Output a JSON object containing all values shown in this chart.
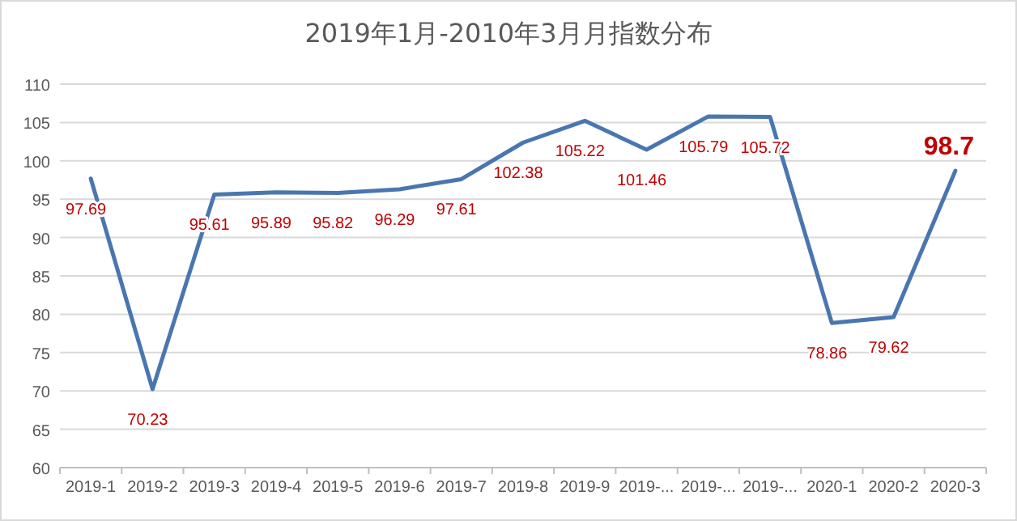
{
  "chart_data": {
    "type": "line",
    "title": "2019年1月-2010年3月月指数分布",
    "categories": [
      "2019-1",
      "2019-2",
      "2019-3",
      "2019-4",
      "2019-5",
      "2019-6",
      "2019-7",
      "2019-8",
      "2019-9",
      "2019-...",
      "2019-...",
      "2019-...",
      "2020-1",
      "2020-2",
      "2020-3"
    ],
    "series": [
      {
        "color": "#4a76b0",
        "values": [
          97.69,
          70.23,
          95.61,
          95.89,
          95.82,
          96.29,
          97.61,
          102.38,
          105.22,
          101.46,
          105.79,
          105.72,
          78.86,
          79.62,
          98.7
        ]
      }
    ],
    "ylim": [
      60,
      110
    ],
    "yticks": [
      60,
      65,
      70,
      75,
      80,
      85,
      90,
      95,
      100,
      105,
      110
    ],
    "grid": "y",
    "marker": "none",
    "line_style": "solid",
    "data_labels": true
  }
}
